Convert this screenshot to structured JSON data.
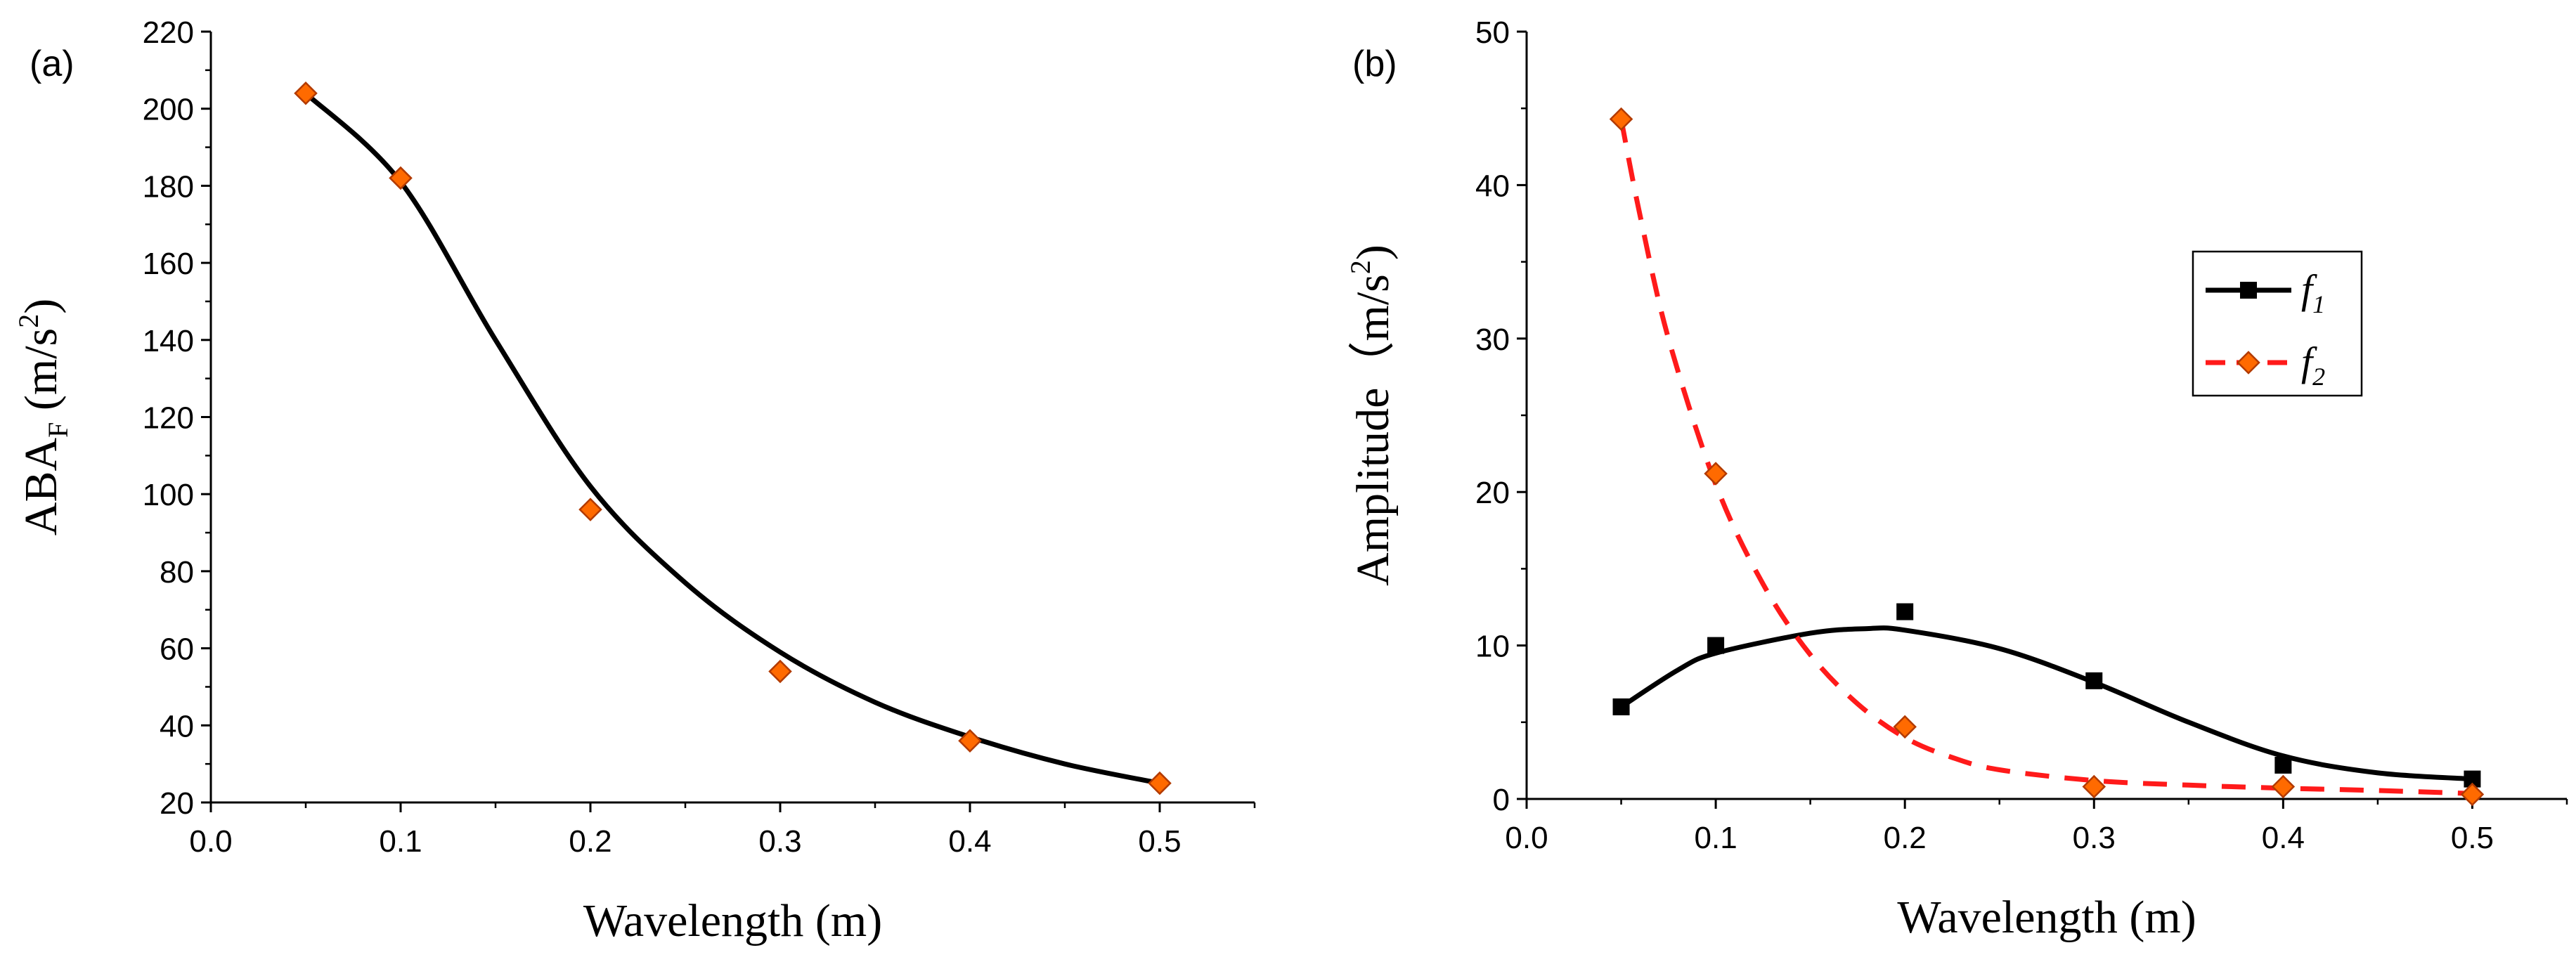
{
  "chart_data": [
    {
      "type": "scatter",
      "panel_label": "(a)",
      "xlabel": "Wavelength (m)",
      "ylabel": {
        "base": "ABA",
        "sub": "F",
        "unit_pre": " (m/s",
        "sup": "2",
        "unit_post": ")"
      },
      "xlim": [
        0.0,
        0.55
      ],
      "ylim": [
        20,
        220
      ],
      "xticks": [
        "0.0",
        "0.1",
        "0.2",
        "0.3",
        "0.4",
        "0.5"
      ],
      "yticks": [
        "20",
        "40",
        "60",
        "80",
        "100",
        "120",
        "140",
        "160",
        "180",
        "200",
        "220"
      ],
      "series": [
        {
          "name": "ABA_F",
          "marker": "diamond",
          "color": "#ff6a00",
          "edge_color": "#b23a00",
          "line_color": "#000000",
          "line_style": "solid",
          "x": [
            0.05,
            0.1,
            0.2,
            0.3,
            0.4,
            0.5
          ],
          "y": [
            204,
            182,
            96,
            54,
            36,
            25
          ],
          "fit_x": [
            0.05,
            0.1,
            0.15,
            0.2,
            0.25,
            0.3,
            0.35,
            0.4,
            0.45,
            0.5
          ],
          "fit_y": [
            204,
            181,
            140,
            102,
            77,
            59,
            46,
            37,
            30,
            25
          ]
        }
      ]
    },
    {
      "type": "scatter",
      "panel_label": "(b)",
      "xlabel": "Wavelength (m)",
      "ylabel": {
        "base": "Amplitude",
        "sub": "",
        "unit_pre": "（m/s",
        "sup": "2",
        "unit_post": ")"
      },
      "xlim": [
        0.0,
        0.55
      ],
      "ylim": [
        0,
        50
      ],
      "xticks": [
        "0.0",
        "0.1",
        "0.2",
        "0.3",
        "0.4",
        "0.5"
      ],
      "yticks": [
        "0",
        "10",
        "20",
        "30",
        "40",
        "50"
      ],
      "legend_position": "upper-right",
      "series": [
        {
          "name": "f",
          "name_sub": "1",
          "marker": "square",
          "color": "#000000",
          "edge_color": "#000000",
          "line_color": "#000000",
          "line_style": "solid",
          "x": [
            0.05,
            0.1,
            0.2,
            0.3,
            0.4,
            0.5
          ],
          "y": [
            6.0,
            10.0,
            12.2,
            7.7,
            2.2,
            1.3
          ],
          "fit_x": [
            0.05,
            0.08,
            0.1,
            0.15,
            0.18,
            0.2,
            0.25,
            0.3,
            0.35,
            0.4,
            0.45,
            0.5
          ],
          "fit_y": [
            6.0,
            8.4,
            9.5,
            10.8,
            11.1,
            11.0,
            9.8,
            7.6,
            5.0,
            2.8,
            1.7,
            1.3
          ]
        },
        {
          "name": "f",
          "name_sub": "2",
          "marker": "diamond",
          "color": "#ff6a00",
          "edge_color": "#b23a00",
          "line_color": "#ff1a1a",
          "line_style": "dashed",
          "x": [
            0.05,
            0.1,
            0.2,
            0.3,
            0.4,
            0.5
          ],
          "y": [
            44.3,
            21.2,
            4.7,
            0.8,
            0.8,
            0.3
          ],
          "fit_x": [
            0.05,
            0.06,
            0.075,
            0.1,
            0.125,
            0.15,
            0.175,
            0.2,
            0.225,
            0.25,
            0.3,
            0.35,
            0.4,
            0.45,
            0.5
          ],
          "fit_y": [
            44.3,
            38.0,
            30.0,
            20.5,
            14.0,
            9.4,
            6.2,
            4.0,
            2.7,
            1.9,
            1.2,
            0.9,
            0.7,
            0.55,
            0.35
          ]
        }
      ]
    }
  ]
}
